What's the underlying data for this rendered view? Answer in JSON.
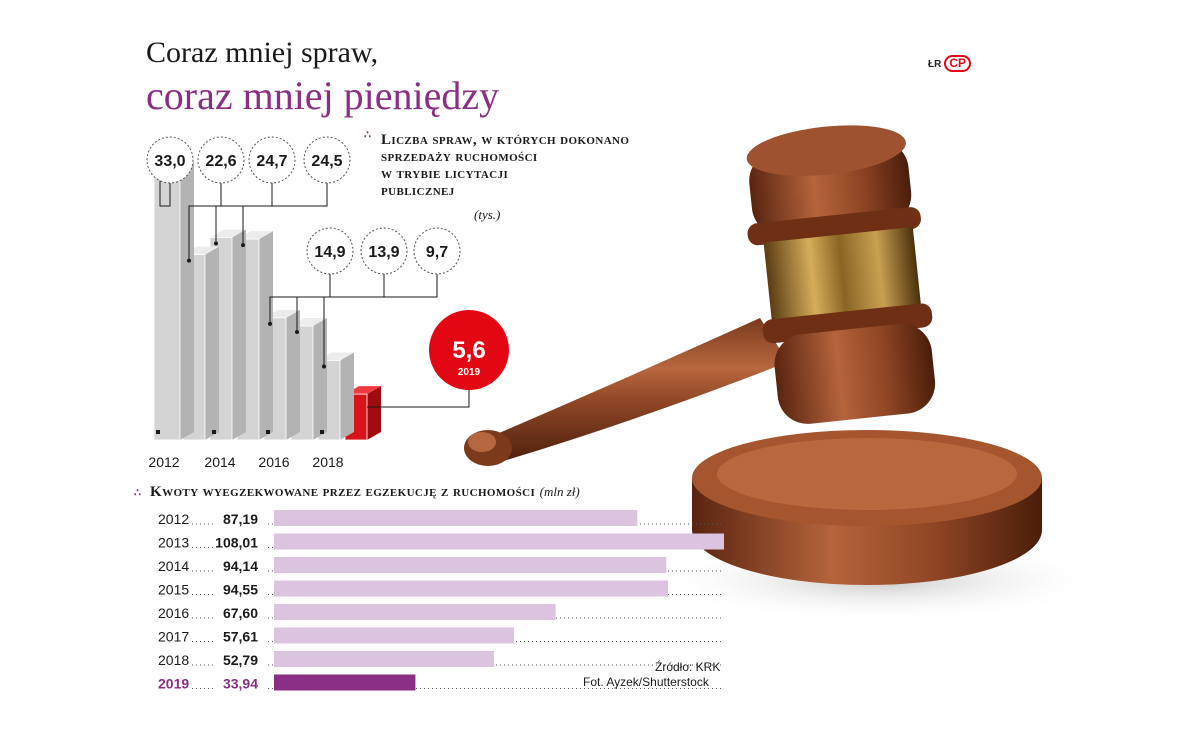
{
  "header": {
    "title_line1": "Coraz mniej spraw,",
    "title_line2": "coraz mniej pieniędzy",
    "logo_prefix": "ŁR",
    "logo_mark": "CP",
    "accent_color": "#8a2f83",
    "highlight_color": "#e30613"
  },
  "chart_data": [
    {
      "type": "bar",
      "title_lines": [
        "Liczba spraw, w których dokonano",
        "sprzedaży ruchomości",
        "w trybie licytacji",
        "publicznej"
      ],
      "unit": "(tys.)",
      "categories": [
        "2012",
        "2013",
        "2014",
        "2015",
        "2016",
        "2017",
        "2018",
        "2019"
      ],
      "values": [
        33.0,
        22.6,
        24.7,
        24.5,
        14.9,
        13.9,
        9.7,
        5.6
      ],
      "value_labels": [
        "33,0",
        "22,6",
        "24,7",
        "24,5",
        "14,9",
        "13,9",
        "9,7",
        "5,6"
      ],
      "tick_labels": [
        "2012",
        "2014",
        "2016",
        "2018"
      ],
      "highlight_label": "2019",
      "highlight_color": "#e30613",
      "bar_color": "#d9d9d9"
    },
    {
      "type": "bar",
      "orientation": "horizontal",
      "title": "Kwoty wyegzekwowane przez egzekucję z ruchomości",
      "unit": "(mln zł)",
      "categories": [
        "2012",
        "2013",
        "2014",
        "2015",
        "2016",
        "2017",
        "2018",
        "2019"
      ],
      "values": [
        87.19,
        108.01,
        94.14,
        94.55,
        67.6,
        57.61,
        52.79,
        33.94
      ],
      "value_labels": [
        "87,19",
        "108,01",
        "94,14",
        "94,55",
        "67,60",
        "57,61",
        "52,79",
        "33,94"
      ],
      "bar_color": "#dcc3df",
      "highlight_color": "#8a2f83",
      "highlight_category": "2019"
    }
  ],
  "footer": {
    "source": "Źródło: KRK",
    "photo_credit": "Fot. Ayzek/Shutterstock"
  }
}
